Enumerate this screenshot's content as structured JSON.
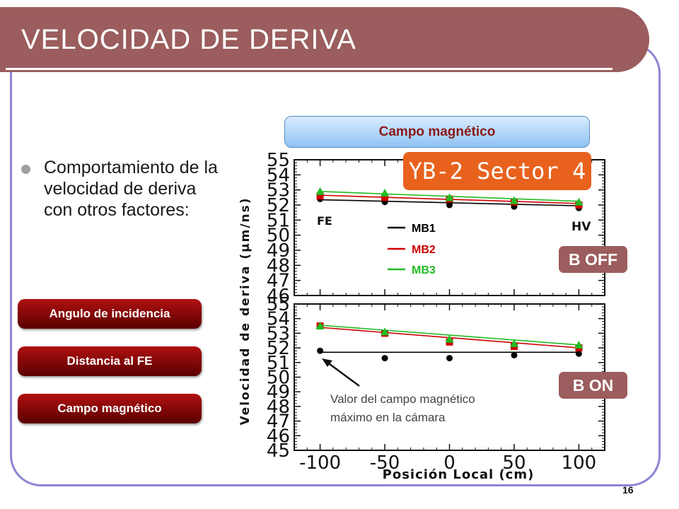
{
  "slide": {
    "title": "VELOCIDAD DE DERIVA",
    "bullet": "Comportamiento de la velocidad de deriva con otros factores:",
    "menu": [
      "Angulo de incidencia",
      "Distancia al FE",
      "Campo magnético"
    ],
    "top_button": "Campo magnético",
    "sector_label": "YB-2 Sector 4",
    "badge_off": "B OFF",
    "badge_on": "B ON",
    "note": [
      "Valor del campo magnético",
      "máximo en la cámara"
    ],
    "page_number": "16"
  },
  "colors": {
    "title_bar": "#9b5d5d",
    "frame": "#8b85d6",
    "mb1": "#000000",
    "mb2": "#cc0000",
    "mb3": "#22bb22",
    "sector_box": "#e8621d"
  },
  "chart_data": [
    {
      "type": "line",
      "panel": "B OFF",
      "x": [
        -100,
        -50,
        0,
        50,
        100
      ],
      "ylim": [
        46,
        55
      ],
      "xlim": [
        -120,
        120
      ],
      "yticks": [
        "46",
        "47",
        "48",
        "49",
        "50",
        "51",
        "52",
        "53",
        "54",
        "55"
      ],
      "annotations": [
        "FE",
        "HV"
      ],
      "series": [
        {
          "name": "MB1",
          "values": [
            52.4,
            52.2,
            52.0,
            51.9,
            51.8
          ],
          "fit": [
            52.35,
            51.95
          ]
        },
        {
          "name": "MB2",
          "values": [
            52.6,
            52.5,
            52.4,
            52.2,
            52.0
          ],
          "fit": [
            52.65,
            52.1
          ]
        },
        {
          "name": "MB3",
          "values": [
            52.9,
            52.8,
            52.5,
            52.3,
            52.2
          ],
          "fit": [
            52.9,
            52.25
          ]
        }
      ]
    },
    {
      "type": "line",
      "panel": "B ON",
      "x": [
        -100,
        -50,
        0,
        50,
        100
      ],
      "ylim": [
        45,
        55
      ],
      "xlim": [
        -120,
        120
      ],
      "yticks": [
        "45",
        "46",
        "47",
        "48",
        "49",
        "50",
        "51",
        "52",
        "53",
        "54",
        "55"
      ],
      "xticks": [
        "-100",
        "-50",
        "0",
        "50",
        "100"
      ],
      "xlabel": "Posición Local (cm)",
      "series": [
        {
          "name": "MB1",
          "values": [
            51.8,
            51.3,
            51.3,
            51.5,
            51.6
          ],
          "fit": [
            51.7,
            51.7
          ]
        },
        {
          "name": "MB2",
          "values": [
            53.5,
            53.0,
            52.4,
            52.1,
            52.0
          ],
          "fit": [
            53.4,
            52.0
          ]
        },
        {
          "name": "MB3",
          "values": [
            53.5,
            53.1,
            52.6,
            52.3,
            52.2
          ],
          "fit": [
            53.55,
            52.2
          ]
        }
      ]
    }
  ],
  "chart_ylabel": "Velocidad de deriva (μm/ns)"
}
